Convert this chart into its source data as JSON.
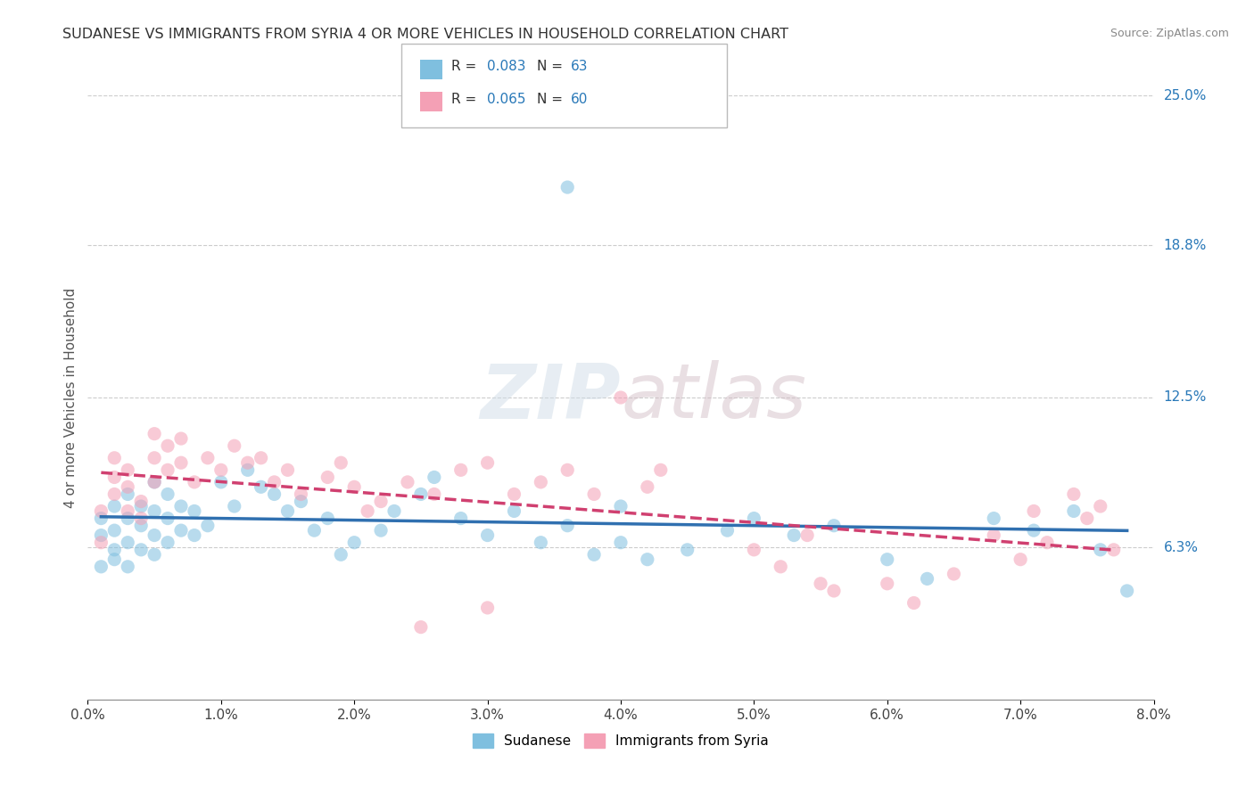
{
  "title": "SUDANESE VS IMMIGRANTS FROM SYRIA 4 OR MORE VEHICLES IN HOUSEHOLD CORRELATION CHART",
  "source": "Source: ZipAtlas.com",
  "ylabel": "4 or more Vehicles in Household",
  "legend1_label": "Sudanese",
  "legend2_label": "Immigrants from Syria",
  "R1": 0.083,
  "N1": 63,
  "R2": 0.065,
  "N2": 60,
  "blue_color": "#7fbfdf",
  "pink_color": "#f4a0b5",
  "blue_line_color": "#3070b0",
  "pink_line_color": "#d04070",
  "xlim": [
    0.0,
    0.08
  ],
  "ylim": [
    0.0,
    0.25
  ],
  "right_labels": [
    [
      "25.0%",
      0.25
    ],
    [
      "18.8%",
      0.188
    ],
    [
      "12.5%",
      0.125
    ],
    [
      "6.3%",
      0.063
    ]
  ],
  "sudanese_x": [
    0.001,
    0.001,
    0.001,
    0.002,
    0.002,
    0.002,
    0.002,
    0.003,
    0.003,
    0.003,
    0.003,
    0.004,
    0.004,
    0.004,
    0.005,
    0.005,
    0.005,
    0.005,
    0.006,
    0.006,
    0.006,
    0.007,
    0.007,
    0.008,
    0.008,
    0.009,
    0.01,
    0.011,
    0.012,
    0.013,
    0.014,
    0.015,
    0.016,
    0.017,
    0.018,
    0.019,
    0.02,
    0.022,
    0.023,
    0.025,
    0.026,
    0.028,
    0.03,
    0.032,
    0.034,
    0.036,
    0.038,
    0.04,
    0.042,
    0.045,
    0.048,
    0.05,
    0.053,
    0.056,
    0.06,
    0.063,
    0.036,
    0.04,
    0.068,
    0.071,
    0.074,
    0.076,
    0.078
  ],
  "sudanese_y": [
    0.055,
    0.068,
    0.075,
    0.062,
    0.08,
    0.07,
    0.058,
    0.075,
    0.065,
    0.055,
    0.085,
    0.072,
    0.08,
    0.062,
    0.068,
    0.078,
    0.09,
    0.06,
    0.075,
    0.065,
    0.085,
    0.07,
    0.08,
    0.068,
    0.078,
    0.072,
    0.09,
    0.08,
    0.095,
    0.088,
    0.085,
    0.078,
    0.082,
    0.07,
    0.075,
    0.06,
    0.065,
    0.07,
    0.078,
    0.085,
    0.092,
    0.075,
    0.068,
    0.078,
    0.065,
    0.072,
    0.06,
    0.065,
    0.058,
    0.062,
    0.07,
    0.075,
    0.068,
    0.072,
    0.058,
    0.05,
    0.212,
    0.08,
    0.075,
    0.07,
    0.078,
    0.062,
    0.045
  ],
  "syria_x": [
    0.001,
    0.001,
    0.002,
    0.002,
    0.002,
    0.003,
    0.003,
    0.003,
    0.004,
    0.004,
    0.005,
    0.005,
    0.005,
    0.006,
    0.006,
    0.007,
    0.007,
    0.008,
    0.009,
    0.01,
    0.011,
    0.012,
    0.013,
    0.014,
    0.015,
    0.016,
    0.018,
    0.019,
    0.02,
    0.021,
    0.022,
    0.024,
    0.026,
    0.028,
    0.03,
    0.032,
    0.034,
    0.036,
    0.038,
    0.04,
    0.042,
    0.043,
    0.05,
    0.052,
    0.054,
    0.056,
    0.06,
    0.065,
    0.068,
    0.07,
    0.071,
    0.072,
    0.074,
    0.075,
    0.076,
    0.077,
    0.025,
    0.03,
    0.055,
    0.062
  ],
  "syria_y": [
    0.065,
    0.078,
    0.085,
    0.092,
    0.1,
    0.078,
    0.088,
    0.095,
    0.082,
    0.075,
    0.09,
    0.1,
    0.11,
    0.095,
    0.105,
    0.098,
    0.108,
    0.09,
    0.1,
    0.095,
    0.105,
    0.098,
    0.1,
    0.09,
    0.095,
    0.085,
    0.092,
    0.098,
    0.088,
    0.078,
    0.082,
    0.09,
    0.085,
    0.095,
    0.098,
    0.085,
    0.09,
    0.095,
    0.085,
    0.125,
    0.088,
    0.095,
    0.062,
    0.055,
    0.068,
    0.045,
    0.048,
    0.052,
    0.068,
    0.058,
    0.078,
    0.065,
    0.085,
    0.075,
    0.08,
    0.062,
    0.03,
    0.038,
    0.048,
    0.04
  ]
}
